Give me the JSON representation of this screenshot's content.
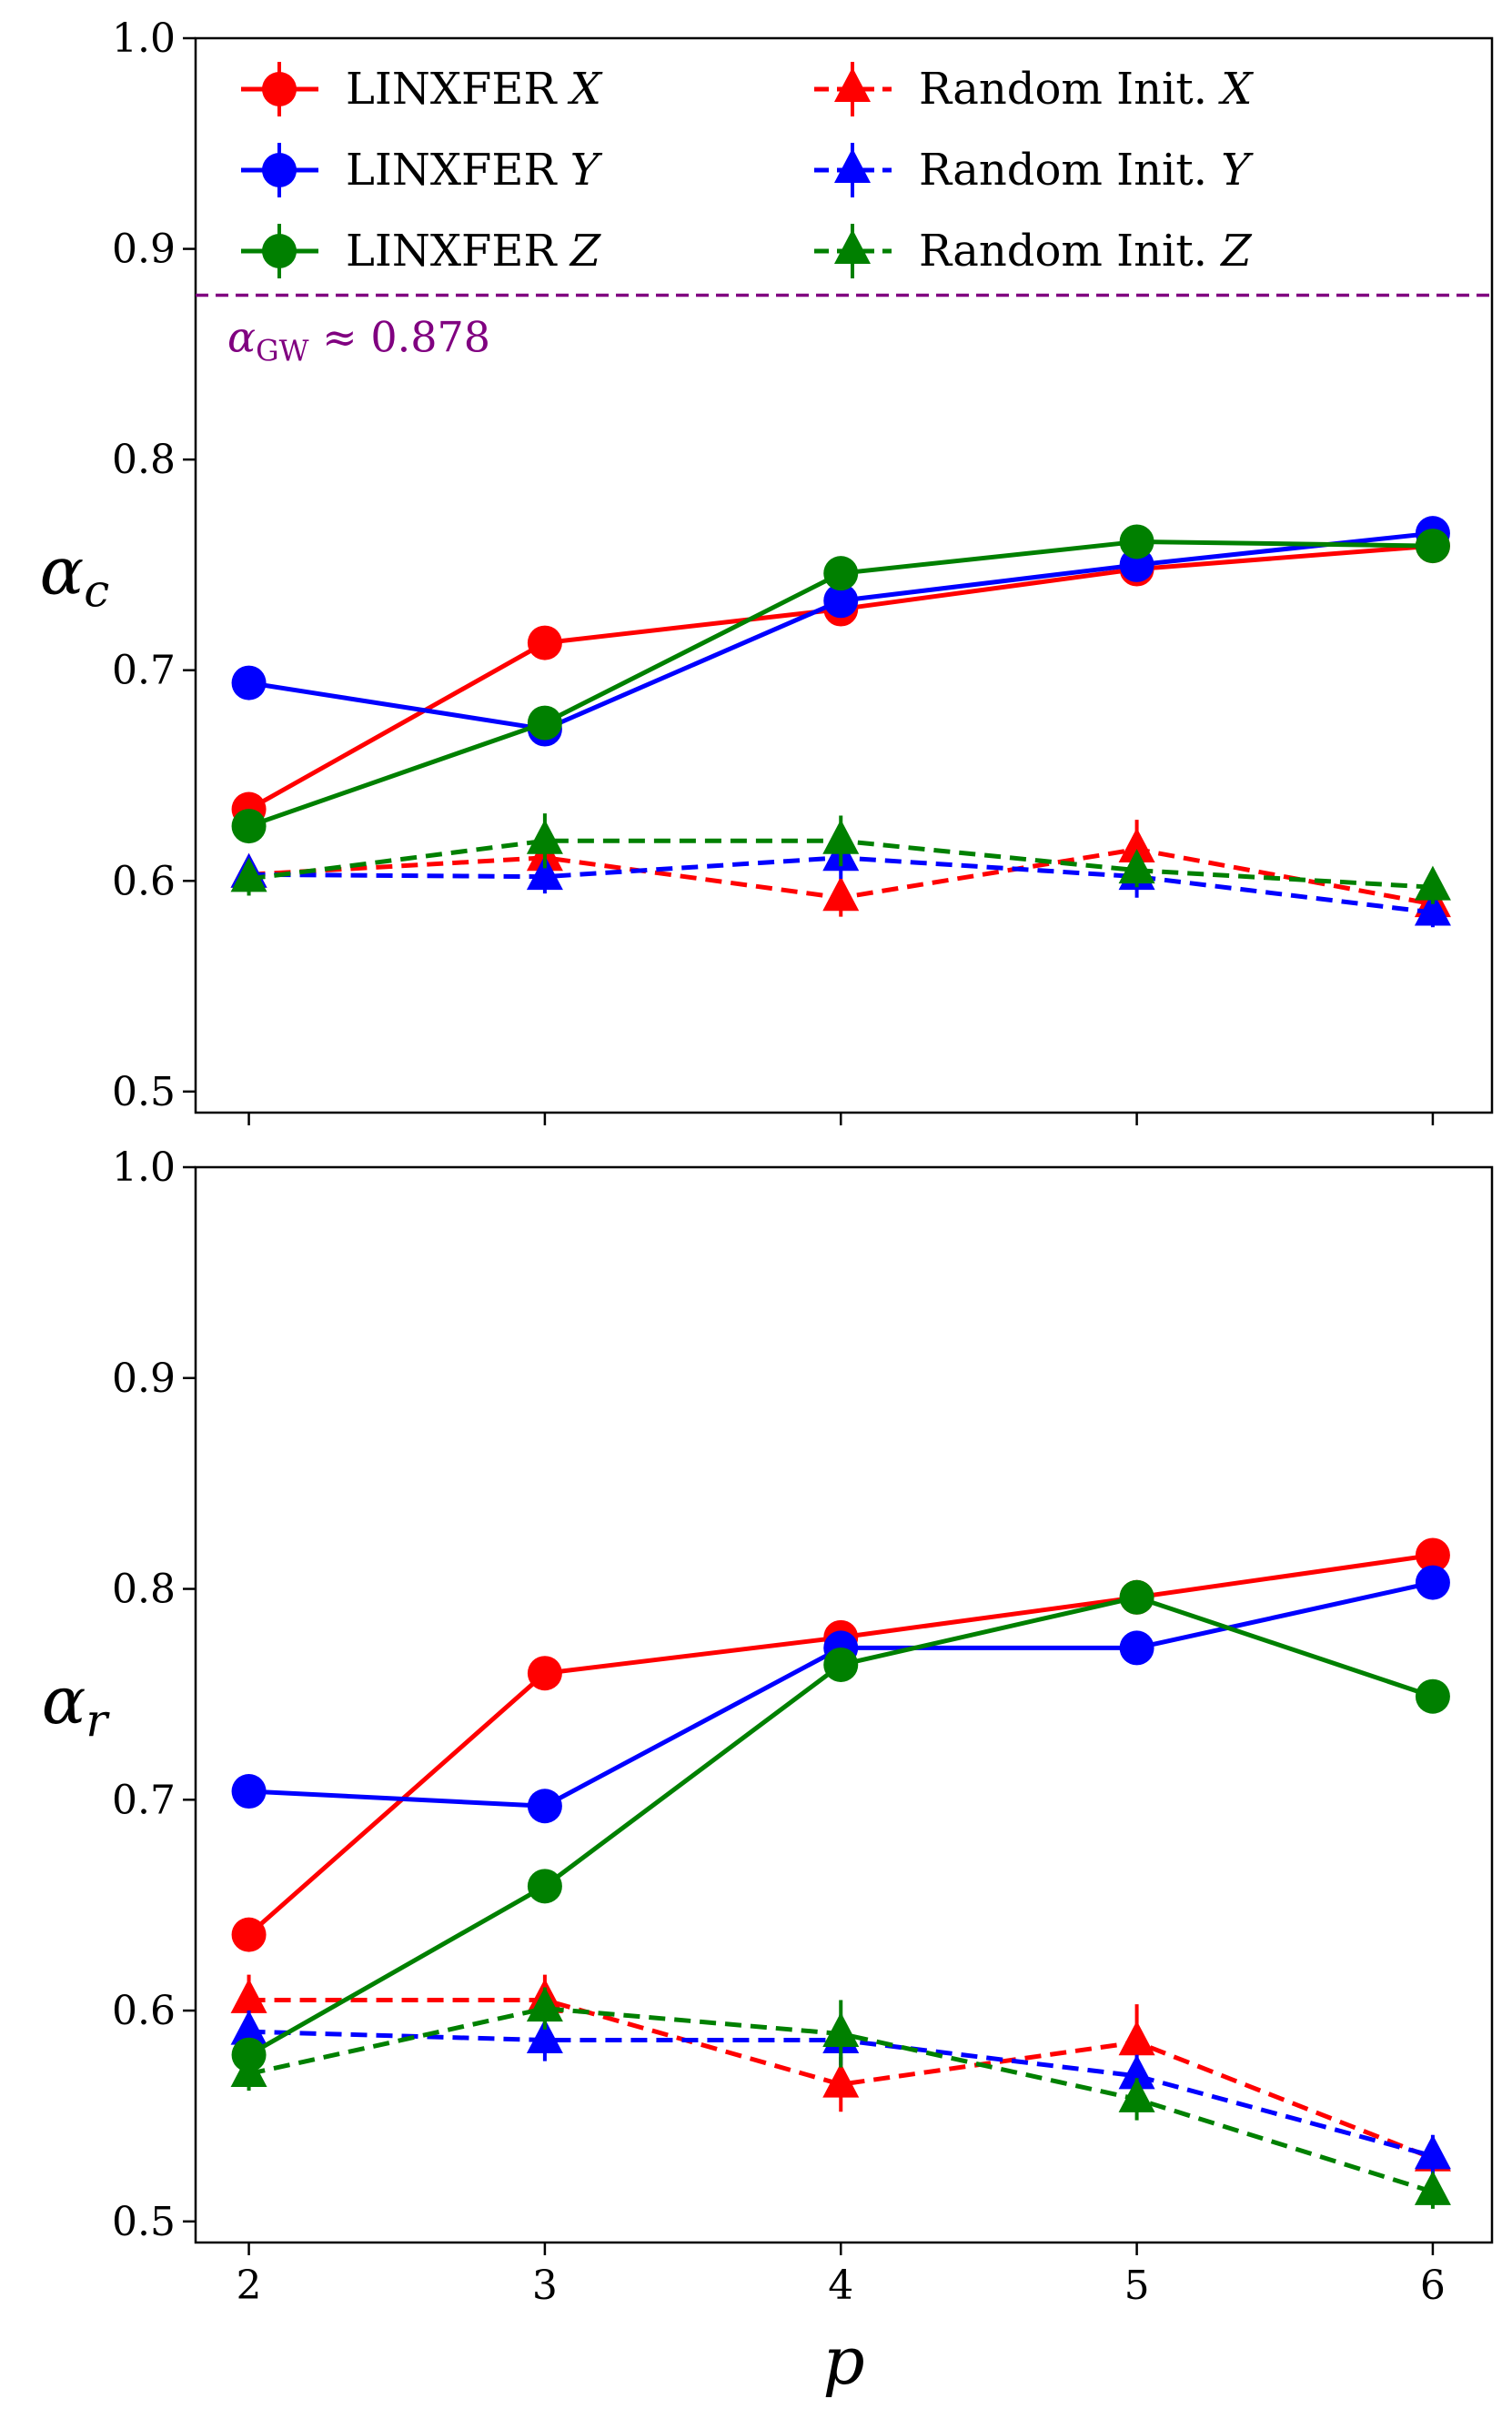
{
  "chart_data": [
    {
      "type": "line",
      "panel": "top",
      "ylabel": "α_c",
      "ylabel_symbol": "α",
      "ylabel_sub": "c",
      "xlabel": "",
      "x": [
        2,
        3,
        4,
        5,
        6
      ],
      "xlim": [
        1.82,
        6.2
      ],
      "ylim": [
        0.49,
        1.0
      ],
      "yticks": [
        0.5,
        0.6,
        0.7,
        0.8,
        0.9,
        1.0
      ],
      "ytick_labels": [
        "0.5",
        "0.6",
        "0.7",
        "0.8",
        "0.9",
        "1.0"
      ],
      "xticks": [
        2,
        3,
        4,
        5,
        6
      ],
      "show_xtick_labels": false,
      "reference_line": {
        "value": 0.878,
        "color": "#800080",
        "label_symbol": "α",
        "label_sub": "GW",
        "label_rest": " ≈ 0.878"
      },
      "series": [
        {
          "name": "LINXFER X",
          "color": "#ff0000",
          "style": "solid",
          "marker": "circle",
          "values": [
            0.634,
            0.713,
            0.729,
            0.748,
            0.759
          ],
          "errors": [
            0,
            0,
            0,
            0,
            0
          ]
        },
        {
          "name": "LINXFER Y",
          "color": "#0000ff",
          "style": "solid",
          "marker": "circle",
          "values": [
            0.694,
            0.672,
            0.733,
            0.75,
            0.765
          ],
          "errors": [
            0,
            0,
            0,
            0,
            0
          ]
        },
        {
          "name": "LINXFER Z",
          "color": "#008000",
          "style": "solid",
          "marker": "circle",
          "values": [
            0.626,
            0.675,
            0.746,
            0.761,
            0.759
          ],
          "errors": [
            0,
            0,
            0,
            0,
            0
          ]
        },
        {
          "name": "Random Init. X",
          "color": "#ff0000",
          "style": "dashed",
          "marker": "triangle",
          "values": [
            0.603,
            0.611,
            0.592,
            0.615,
            0.589
          ],
          "errors": [
            0.008,
            0.01,
            0.009,
            0.014,
            0.009
          ]
        },
        {
          "name": "Random Init. Y",
          "color": "#0000ff",
          "style": "dashed",
          "marker": "triangle",
          "values": [
            0.603,
            0.602,
            0.611,
            0.602,
            0.585
          ],
          "errors": [
            0.007,
            0.008,
            0.01,
            0.01,
            0.007
          ]
        },
        {
          "name": "Random Init. Z",
          "color": "#008000",
          "style": "dashed",
          "marker": "triangle",
          "values": [
            0.601,
            0.619,
            0.619,
            0.605,
            0.597
          ],
          "errors": [
            0.008,
            0.013,
            0.012,
            0.008,
            0.008
          ]
        }
      ],
      "legend": {
        "placement": "top",
        "columns": 2,
        "entries": [
          {
            "label": "LINXFER ",
            "var": "X",
            "series": 0
          },
          {
            "label": "Random Init. ",
            "var": "X",
            "series": 3
          },
          {
            "label": "LINXFER ",
            "var": "Y",
            "series": 1
          },
          {
            "label": "Random Init. ",
            "var": "Y",
            "series": 4
          },
          {
            "label": "LINXFER ",
            "var": "Z",
            "series": 2
          },
          {
            "label": "Random Init. ",
            "var": "Z",
            "series": 5
          }
        ]
      }
    },
    {
      "type": "line",
      "panel": "bottom",
      "ylabel": "α_r",
      "ylabel_symbol": "α",
      "ylabel_sub": "r",
      "xlabel": "p",
      "x": [
        2,
        3,
        4,
        5,
        6
      ],
      "xlim": [
        1.82,
        6.2
      ],
      "ylim": [
        0.49,
        1.0
      ],
      "yticks": [
        0.5,
        0.6,
        0.7,
        0.8,
        0.9,
        1.0
      ],
      "ytick_labels": [
        "0.5",
        "0.6",
        "0.7",
        "0.8",
        "0.9",
        "1.0"
      ],
      "xticks": [
        2,
        3,
        4,
        5,
        6
      ],
      "xtick_labels": [
        "2",
        "3",
        "4",
        "5",
        "6"
      ],
      "show_xtick_labels": true,
      "series": [
        {
          "name": "LINXFER X",
          "color": "#ff0000",
          "style": "solid",
          "marker": "circle",
          "values": [
            0.636,
            0.76,
            0.777,
            0.796,
            0.816
          ],
          "errors": [
            0,
            0,
            0,
            0,
            0
          ]
        },
        {
          "name": "LINXFER Y",
          "color": "#0000ff",
          "style": "solid",
          "marker": "circle",
          "values": [
            0.704,
            0.697,
            0.772,
            0.772,
            0.803
          ],
          "errors": [
            0,
            0,
            0,
            0,
            0
          ]
        },
        {
          "name": "LINXFER Z",
          "color": "#008000",
          "style": "solid",
          "marker": "circle",
          "values": [
            0.579,
            0.659,
            0.764,
            0.796,
            0.749
          ],
          "errors": [
            0,
            0,
            0,
            0,
            0
          ]
        },
        {
          "name": "Random Init. X",
          "color": "#ff0000",
          "style": "dashed",
          "marker": "triangle",
          "values": [
            0.605,
            0.605,
            0.565,
            0.585,
            0.53
          ],
          "errors": [
            0.012,
            0.012,
            0.013,
            0.018,
            0.01
          ]
        },
        {
          "name": "Random Init. Y",
          "color": "#0000ff",
          "style": "dashed",
          "marker": "triangle",
          "values": [
            0.59,
            0.586,
            0.586,
            0.569,
            0.531
          ],
          "errors": [
            0.01,
            0.01,
            0.012,
            0.01,
            0.01
          ]
        },
        {
          "name": "Random Init. Z",
          "color": "#008000",
          "style": "dashed",
          "marker": "triangle",
          "values": [
            0.57,
            0.601,
            0.589,
            0.558,
            0.514
          ],
          "errors": [
            0.008,
            0.01,
            0.016,
            0.01,
            0.008
          ]
        }
      ]
    }
  ]
}
